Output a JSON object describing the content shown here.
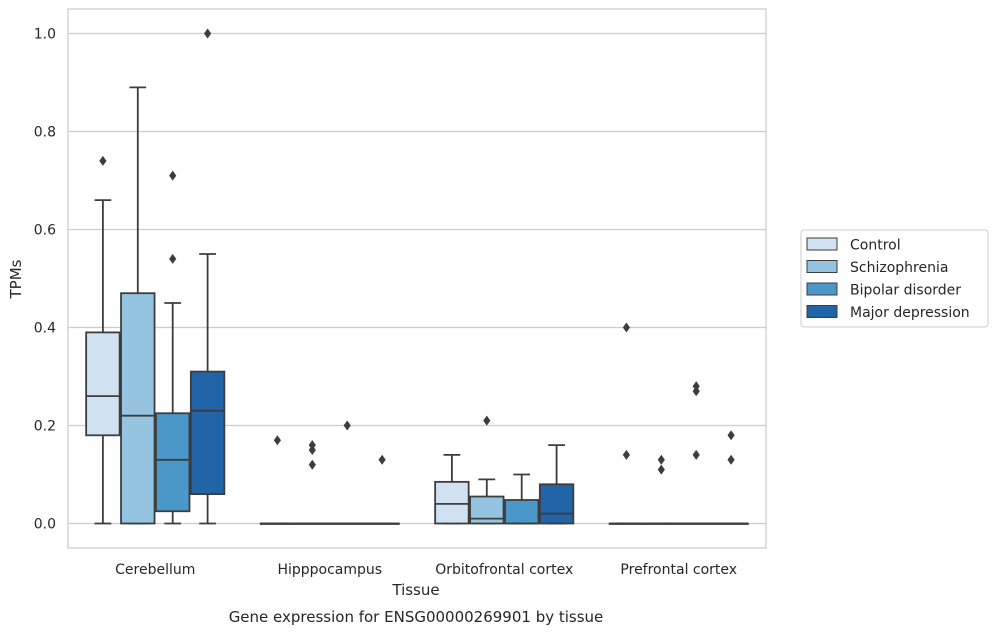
{
  "chart_data": {
    "type": "box",
    "title": "",
    "caption": "Gene expression for ENSG00000269901 by tissue",
    "xlabel": "Tissue",
    "ylabel": "TPMs",
    "ylim": [
      -0.05,
      1.05
    ],
    "yticks": [
      "0.0",
      "0.2",
      "0.4",
      "0.6",
      "0.8",
      "1.0"
    ],
    "grid": "horizontal",
    "legend_position": "right",
    "categories": [
      "Cerebellum",
      "Hipppocampus",
      "Orbitofrontal cortex",
      "Prefrontal cortex"
    ],
    "series": [
      {
        "name": "Control",
        "color": "#d0e1f2",
        "boxes": [
          {
            "whislo": 0.0,
            "q1": 0.18,
            "med": 0.26,
            "q3": 0.39,
            "whishi": 0.66,
            "fliers": [
              0.74
            ]
          },
          {
            "whislo": 0.0,
            "q1": 0.0,
            "med": 0.0,
            "q3": 0.0,
            "whishi": 0.0,
            "fliers": [
              0.17
            ]
          },
          {
            "whislo": 0.0,
            "q1": 0.0,
            "med": 0.04,
            "q3": 0.085,
            "whishi": 0.14,
            "fliers": []
          },
          {
            "whislo": 0.0,
            "q1": 0.0,
            "med": 0.0,
            "q3": 0.0,
            "whishi": 0.0,
            "fliers": [
              0.4,
              0.14
            ]
          }
        ]
      },
      {
        "name": "Schizophrenia",
        "color": "#94c4df",
        "boxes": [
          {
            "whislo": 0.0,
            "q1": 0.0,
            "med": 0.22,
            "q3": 0.47,
            "whishi": 0.89,
            "fliers": []
          },
          {
            "whislo": 0.0,
            "q1": 0.0,
            "med": 0.0,
            "q3": 0.0,
            "whishi": 0.0,
            "fliers": [
              0.15,
              0.12,
              0.16
            ]
          },
          {
            "whislo": 0.0,
            "q1": 0.0,
            "med": 0.01,
            "q3": 0.055,
            "whishi": 0.09,
            "fliers": [
              0.21
            ]
          },
          {
            "whislo": 0.0,
            "q1": 0.0,
            "med": 0.0,
            "q3": 0.0,
            "whishi": 0.0,
            "fliers": [
              0.13,
              0.11
            ]
          }
        ]
      },
      {
        "name": "Bipolar disorder",
        "color": "#4a98c9",
        "boxes": [
          {
            "whislo": 0.0,
            "q1": 0.025,
            "med": 0.13,
            "q3": 0.225,
            "whishi": 0.45,
            "fliers": [
              0.71,
              0.54
            ]
          },
          {
            "whislo": 0.0,
            "q1": 0.0,
            "med": 0.0,
            "q3": 0.0,
            "whishi": 0.0,
            "fliers": [
              0.2
            ]
          },
          {
            "whislo": 0.0,
            "q1": 0.0,
            "med": 0.0,
            "q3": 0.048,
            "whishi": 0.1,
            "fliers": []
          },
          {
            "whislo": 0.0,
            "q1": 0.0,
            "med": 0.0,
            "q3": 0.0,
            "whishi": 0.0,
            "fliers": [
              0.28,
              0.27,
              0.14
            ]
          }
        ]
      },
      {
        "name": "Major depression",
        "color": "#2264a8",
        "boxes": [
          {
            "whislo": 0.0,
            "q1": 0.06,
            "med": 0.23,
            "q3": 0.31,
            "whishi": 0.55,
            "fliers": [
              1.0
            ]
          },
          {
            "whislo": 0.0,
            "q1": 0.0,
            "med": 0.0,
            "q3": 0.0,
            "whishi": 0.0,
            "fliers": [
              0.13
            ]
          },
          {
            "whislo": 0.0,
            "q1": 0.0,
            "med": 0.02,
            "q3": 0.08,
            "whishi": 0.16,
            "fliers": []
          },
          {
            "whislo": 0.0,
            "q1": 0.0,
            "med": 0.0,
            "q3": 0.0,
            "whishi": 0.0,
            "fliers": [
              0.18,
              0.13
            ]
          }
        ]
      }
    ]
  }
}
